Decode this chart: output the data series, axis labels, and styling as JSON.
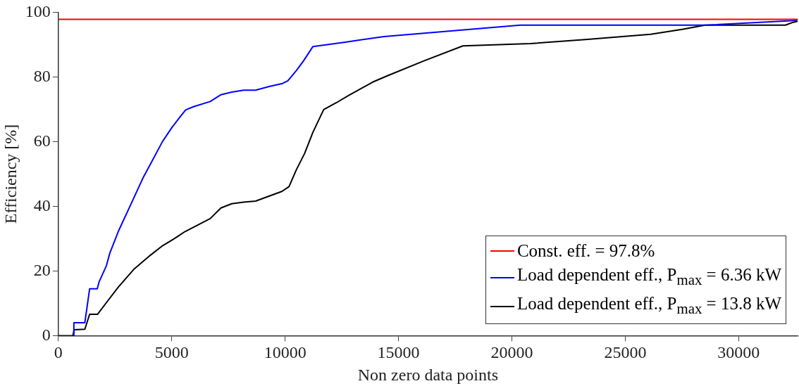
{
  "chart_data": {
    "type": "line",
    "xlabel": "Non zero data points",
    "ylabel": "Efficiency [%]",
    "xlim": [
      0,
      32600
    ],
    "ylim": [
      0,
      100
    ],
    "xticks": [
      0,
      5000,
      10000,
      15000,
      20000,
      25000,
      30000
    ],
    "yticks": [
      0,
      20,
      40,
      60,
      80,
      100
    ],
    "grid": false,
    "legend": "bottom right",
    "marker": "none",
    "line_style": "solid",
    "series": [
      {
        "name": "Const. eff. = 97.8%",
        "color": "#ff0000",
        "x": [
          0,
          32600
        ],
        "values": [
          97.8,
          97.8
        ]
      },
      {
        "name": "Load dependent eff., P$_{max}$ = 6.36 kW",
        "color": "#0000ff",
        "x": [
          663,
          685,
          1169,
          1380,
          1717,
          1800,
          2117,
          2275,
          2643,
          3223,
          3750,
          4118,
          4592,
          5013,
          5329,
          5613,
          5961,
          6698,
          7172,
          7646,
          8173,
          8699,
          9331,
          9858,
          10121,
          10490,
          10806,
          11227,
          12597,
          14366,
          20370,
          28521,
          31554,
          32600
        ],
        "values": [
          0,
          4,
          4,
          14.5,
          14.5,
          16.7,
          21.6,
          25.6,
          32.2,
          41,
          49,
          53.8,
          60,
          64.4,
          67.3,
          69.8,
          70.8,
          72.4,
          74.5,
          75.3,
          75.9,
          75.9,
          77.1,
          77.9,
          78.8,
          81.9,
          84.9,
          89.4,
          90.7,
          92.5,
          96,
          96,
          97.1,
          97.5
        ]
      },
      {
        "name": "Load dependent eff., P$_{max}$ = 13.8 kW",
        "color": "#000000",
        "x": [
          0,
          642,
          695,
          1169,
          1380,
          1727,
          2117,
          2643,
          3328,
          4065,
          4592,
          5066,
          5592,
          6698,
          7172,
          7646,
          8173,
          8699,
          9437,
          9858,
          10174,
          10490,
          10858,
          11227,
          11701,
          12280,
          12807,
          13862,
          14494,
          16137,
          17843,
          20813,
          23341,
          26121,
          27511,
          28521,
          32060,
          32407,
          32600
        ],
        "values": [
          0,
          0,
          1.8,
          2,
          6.6,
          6.6,
          10.2,
          15,
          20.5,
          24.9,
          27.8,
          29.8,
          32.2,
          36.2,
          39.5,
          40.8,
          41.3,
          41.6,
          43.5,
          44.6,
          46.1,
          51.2,
          56.3,
          62.9,
          69.9,
          72.1,
          74.3,
          78.4,
          80.3,
          85,
          89.6,
          90.3,
          91.6,
          93.2,
          94.7,
          96,
          96,
          96.9,
          97.2
        ]
      }
    ]
  }
}
